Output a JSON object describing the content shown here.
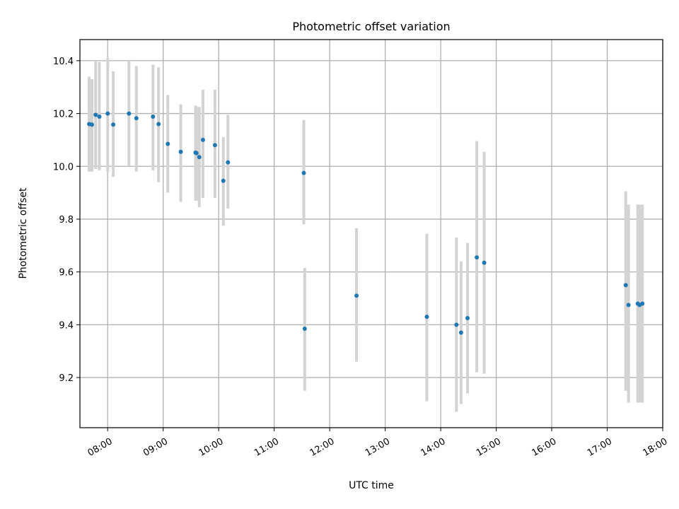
{
  "chart_data": {
    "type": "scatter",
    "title": "Photometric offset variation",
    "xlabel": "UTC time",
    "ylabel": "Photometric offset",
    "x_axis": {
      "type": "time",
      "range": [
        "07:30",
        "18:00"
      ],
      "ticks": [
        "08:00",
        "09:00",
        "10:00",
        "11:00",
        "12:00",
        "13:00",
        "14:00",
        "15:00",
        "16:00",
        "17:00",
        "18:00"
      ]
    },
    "y_axis": {
      "range": [
        9.01,
        10.48
      ],
      "ticks": [
        9.2,
        9.4,
        9.6,
        9.8,
        10.0,
        10.2,
        10.4
      ],
      "tick_labels": [
        "9.2",
        "9.4",
        "9.6",
        "9.8",
        "10.0",
        "10.2",
        "10.4"
      ]
    },
    "grid": true,
    "colors": {
      "points": "#1f77b4",
      "errorbars": "#d3d3d3",
      "grid": "#b0b0b0"
    },
    "series": [
      {
        "x": [
          "07:40",
          "07:43",
          "07:47",
          "07:51",
          "08:00",
          "08:06",
          "08:23",
          "08:31",
          "08:49",
          "08:55",
          "09:05",
          "09:19",
          "09:35",
          "09:36",
          "09:39",
          "09:43",
          "09:56",
          "10:05",
          "10:10",
          "11:32",
          "11:33",
          "12:29",
          "13:45",
          "14:17",
          "14:22",
          "14:29",
          "14:39",
          "14:47",
          "17:20",
          "17:23",
          "17:33",
          "17:35",
          "17:38"
        ],
        "y": [
          10.16,
          10.158,
          10.195,
          10.188,
          10.2,
          10.158,
          10.2,
          10.182,
          10.188,
          10.16,
          10.085,
          10.055,
          10.052,
          10.05,
          10.035,
          10.1,
          10.08,
          9.945,
          10.015,
          9.975,
          9.385,
          9.51,
          9.43,
          9.4,
          9.37,
          9.425,
          9.655,
          9.635,
          9.55,
          9.475,
          9.48,
          9.475,
          9.48
        ],
        "ylow": [
          9.98,
          9.98,
          9.99,
          9.985,
          9.98,
          9.96,
          10.0,
          9.98,
          9.985,
          9.94,
          9.9,
          9.865,
          9.87,
          9.87,
          9.845,
          9.88,
          9.88,
          9.775,
          9.84,
          9.78,
          9.15,
          9.26,
          9.11,
          9.07,
          9.1,
          9.14,
          9.22,
          9.215,
          9.15,
          9.105,
          9.105,
          9.105,
          9.105
        ],
        "yhigh": [
          10.34,
          10.33,
          10.4,
          10.395,
          10.41,
          10.36,
          10.4,
          10.38,
          10.385,
          10.375,
          10.27,
          10.235,
          10.23,
          10.225,
          10.225,
          10.29,
          10.29,
          10.11,
          10.195,
          10.175,
          9.615,
          9.765,
          9.745,
          9.73,
          9.64,
          9.71,
          10.095,
          10.055,
          9.905,
          9.855,
          9.855,
          9.855,
          9.855
        ]
      }
    ]
  }
}
